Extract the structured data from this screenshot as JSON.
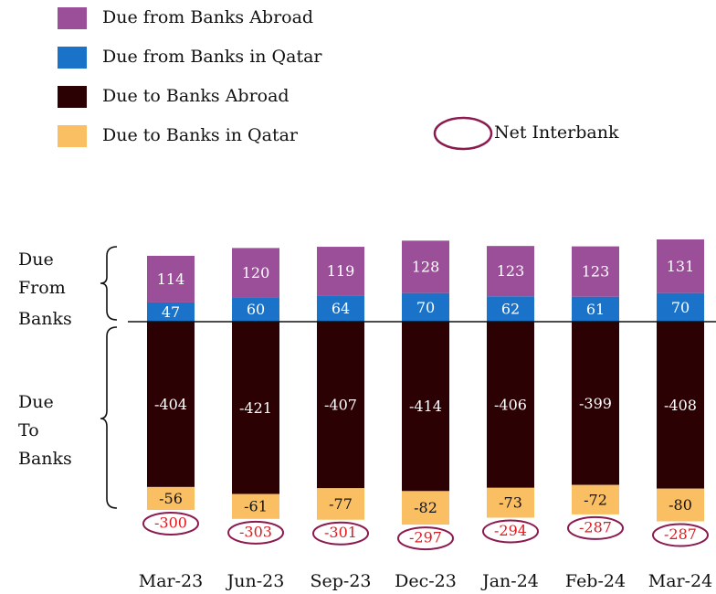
{
  "chart_data": {
    "type": "bar",
    "stacked": true,
    "categories": [
      "Mar-23",
      "Jun-23",
      "Sep-23",
      "Dec-23",
      "Jan-24",
      "Feb-24",
      "Mar-24"
    ],
    "series": [
      {
        "name": "Due from Banks Abroad",
        "color": "#9b4f98",
        "values": [
          114,
          120,
          119,
          128,
          123,
          123,
          131
        ]
      },
      {
        "name": "Due from Banks in Qatar",
        "color": "#1a73c9",
        "values": [
          47,
          60,
          64,
          70,
          62,
          61,
          70
        ]
      },
      {
        "name": "Due to Banks Abroad",
        "color": "#2b0104",
        "values": [
          -404,
          -421,
          -407,
          -414,
          -406,
          -399,
          -408
        ]
      },
      {
        "name": "Due to Banks in Qatar",
        "color": "#fbbf63",
        "values": [
          -56,
          -61,
          -77,
          -82,
          -73,
          -72,
          -80
        ]
      }
    ],
    "net": {
      "name": "Net Interbank",
      "color": "#8b1a4f",
      "label_color": "#e0191e",
      "values": [
        -300,
        -303,
        -301,
        -297,
        -294,
        -287,
        -287
      ]
    },
    "annotations": [
      [
        "Due",
        "From",
        "Banks"
      ],
      [
        "Due",
        "To",
        "Banks"
      ]
    ]
  }
}
